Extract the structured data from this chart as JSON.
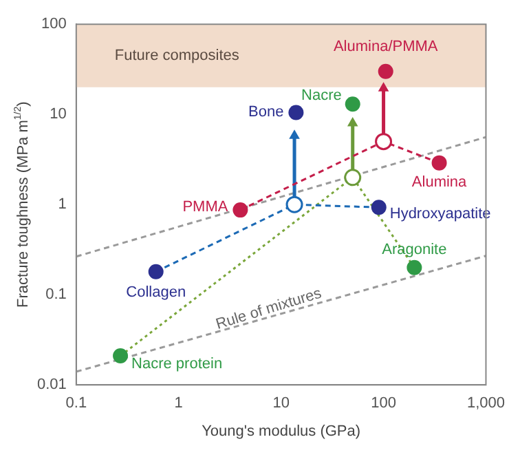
{
  "chart_data": {
    "type": "scatter",
    "xlabel": "Young's modulus (GPa)",
    "ylabel": "Fracture toughness (MPa m$^{1/2}$)",
    "log": "xy",
    "xlim": [
      0.1,
      1000
    ],
    "ylim": [
      0.01,
      100
    ],
    "xticks": [
      0.1,
      1,
      10,
      100,
      {
        "value": 1000,
        "label": "1,000"
      }
    ],
    "yticks": [
      0.01,
      0.1,
      1,
      10,
      100
    ],
    "grid": false,
    "legend": false,
    "marker": "circle",
    "bands": [
      {
        "axis": "y",
        "from": 20,
        "to": 100,
        "label": "Future composites",
        "color": "#f2dccb"
      }
    ],
    "annotations": [
      "Rule of mixtures"
    ],
    "series": [
      {
        "name": "Collagen",
        "color": "#2b2f8f",
        "x": [
          0.6
        ],
        "values": [
          0.18
        ]
      },
      {
        "name": "Hydroxyapatite",
        "color": "#2b2f8f",
        "x": [
          90
        ],
        "values": [
          0.93
        ]
      },
      {
        "name": "Bone",
        "color": "#2b2f8f",
        "x": [
          14
        ],
        "values": [
          10.5
        ]
      },
      {
        "name": "PMMA",
        "color": "#c41e4a",
        "x": [
          4
        ],
        "values": [
          0.87
        ]
      },
      {
        "name": "Alumina",
        "color": "#c41e4a",
        "x": [
          350
        ],
        "values": [
          2.9
        ]
      },
      {
        "name": "Alumina/PMMA",
        "color": "#c41e4a",
        "x": [
          105
        ],
        "values": [
          30
        ]
      },
      {
        "name": "Nacre protein",
        "color": "#2f9a46",
        "x": [
          0.27
        ],
        "values": [
          0.021
        ]
      },
      {
        "name": "Aragonite",
        "color": "#2f9a46",
        "x": [
          200
        ],
        "values": [
          0.2
        ]
      },
      {
        "name": "Nacre",
        "color": "#2f9a46",
        "x": [
          50
        ],
        "values": [
          13
        ]
      },
      {
        "colors": [
          "#1c6ab5",
          "#c41e4a",
          "#6b9a3a"
        ],
        "x": [
          13.5,
          100,
          50
        ],
        "values": [
          1.0,
          5,
          2
        ]
      },
      {
        "type": "line",
        "marker": "none",
        "line_style": "dashed",
        "color": "#1c6ab5",
        "x": [
          0.6,
          13.5
        ],
        "values": [
          0.18,
          1.0
        ]
      },
      {
        "type": "line",
        "marker": "none",
        "line_style": "dashed",
        "color": "#1c6ab5",
        "x": [
          90,
          13.5
        ],
        "values": [
          0.93,
          1.0
        ]
      },
      {
        "type": "line",
        "marker": "none",
        "line_style": "dashed",
        "color": "#c41e4a",
        "x": [
          4,
          100
        ],
        "values": [
          0.87,
          5
        ]
      },
      {
        "type": "line",
        "marker": "none",
        "line_style": "dashed",
        "color": "#c41e4a",
        "x": [
          350,
          100
        ],
        "values": [
          2.9,
          5
        ]
      },
      {
        "type": "line",
        "marker": "none",
        "line_style": "dotted",
        "color": "#7aa63a",
        "x": [
          0.27,
          50
        ],
        "values": [
          0.021,
          2
        ]
      },
      {
        "type": "line",
        "marker": "none",
        "line_style": "dotted",
        "color": "#7aa63a",
        "x": [
          200,
          50
        ],
        "values": [
          0.2,
          2
        ]
      },
      {
        "type": "line",
        "marker": "none",
        "line_style": "solid",
        "color": "#1c6ab5",
        "x": [
          13.5,
          13.5
        ],
        "values": [
          1.0,
          5.8
        ]
      },
      {
        "type": "line",
        "marker": "none",
        "line_style": "solid",
        "color": "#6b9a3a",
        "x": [
          50,
          50
        ],
        "values": [
          2,
          8
        ]
      },
      {
        "type": "line",
        "marker": "none",
        "line_style": "solid",
        "color": "#c41e4a",
        "x": [
          100,
          100
        ],
        "values": [
          5,
          19.5
        ]
      },
      {
        "marker": "triangle",
        "colors": [
          "#1c6ab5",
          "#6b9a3a",
          "#c41e4a"
        ],
        "x": [
          13.5,
          50,
          100
        ],
        "values": [
          5.8,
          8,
          19.5
        ]
      },
      {
        "type": "line",
        "marker": "none",
        "line_style": "dashed",
        "color": "#9a9a9a",
        "x": [
          0.1,
          1000
        ],
        "values": [
          0.265,
          5.6
        ]
      },
      {
        "type": "line",
        "marker": "none",
        "line_style": "dashed",
        "color": "#9a9a9a",
        "x": [
          0.1,
          1000
        ],
        "values": [
          0.014,
          0.27
        ]
      }
    ]
  }
}
